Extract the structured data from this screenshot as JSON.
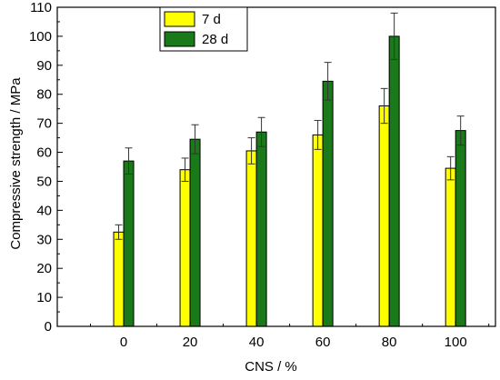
{
  "chart_data": {
    "type": "bar",
    "title": "",
    "xlabel": "CNS / %",
    "ylabel": "Compressive strength / MPa",
    "categories": [
      "0",
      "20",
      "40",
      "60",
      "80",
      "100"
    ],
    "x": [
      0,
      20,
      40,
      60,
      80,
      100
    ],
    "xlim": [
      -20,
      112
    ],
    "ylim": [
      0,
      110
    ],
    "yticks": [
      0,
      10,
      20,
      30,
      40,
      50,
      60,
      70,
      80,
      90,
      100,
      110
    ],
    "grid": false,
    "legend_position": "top-center",
    "series": [
      {
        "name": "7 d",
        "color": "#ffff00",
        "values": [
          32.5,
          54,
          60.5,
          66,
          76,
          54.5
        ],
        "errors": [
          2.5,
          4,
          4.5,
          5,
          6,
          4
        ]
      },
      {
        "name": "28 d",
        "color": "#1a7a1a",
        "values": [
          57,
          64.5,
          67,
          84.5,
          100,
          67.5
        ],
        "errors": [
          4.5,
          5,
          5,
          6.5,
          8,
          5
        ]
      }
    ]
  }
}
